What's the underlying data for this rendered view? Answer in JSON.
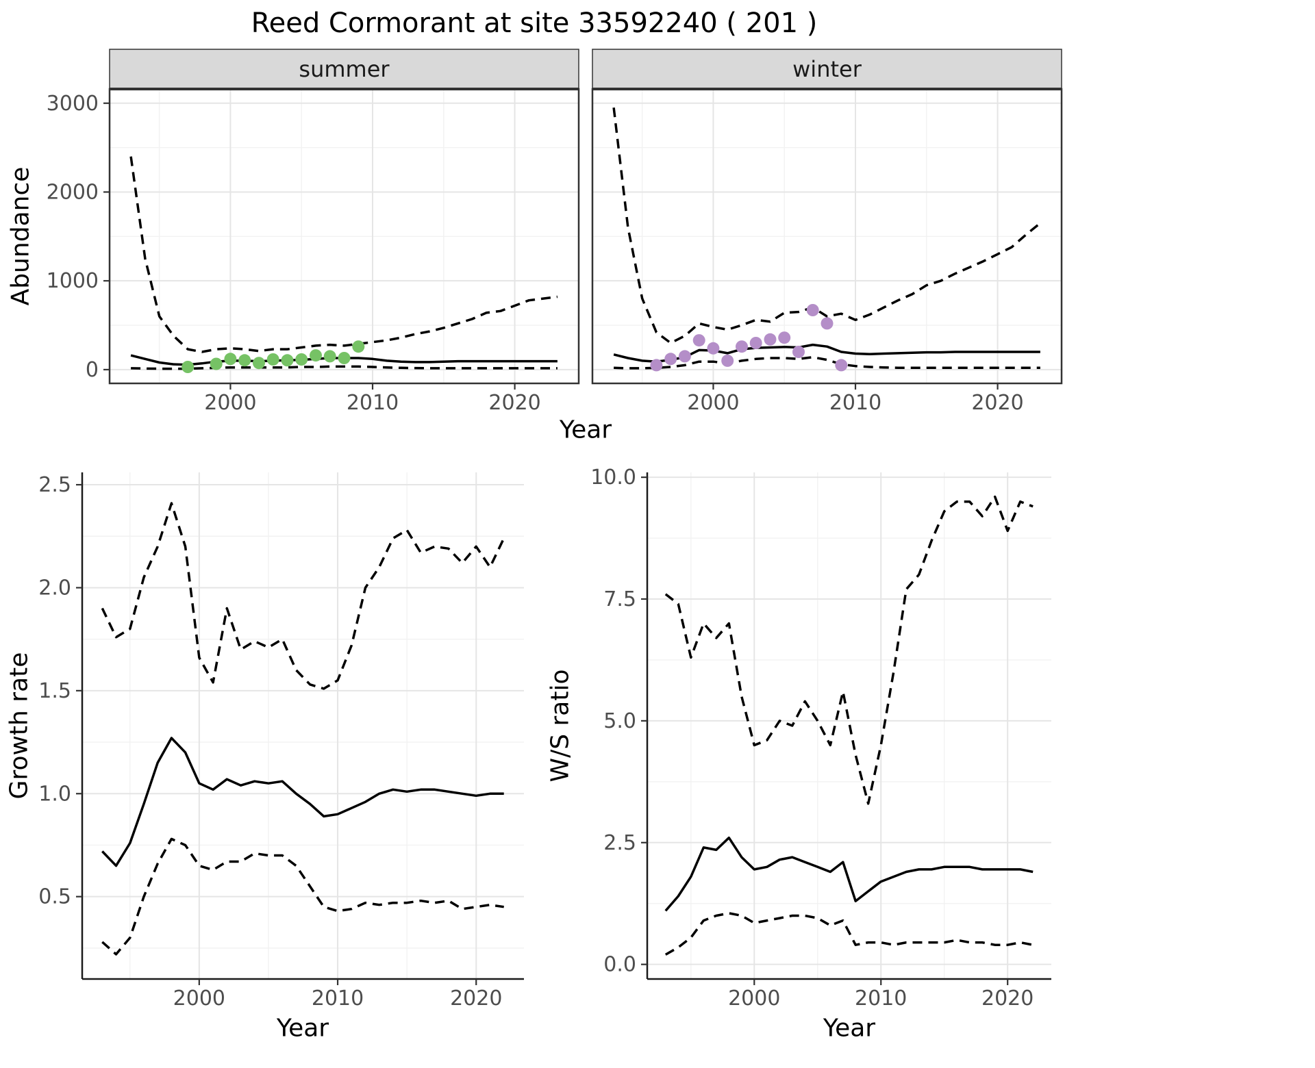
{
  "title": "Reed Cormorant at site 33592240 ( 201 )",
  "labels": {
    "abundance": "Abundance",
    "year": "Year",
    "growth_rate": "Growth rate",
    "ws_ratio": "W/S ratio",
    "facet_summer": "summer",
    "facet_winter": "winter"
  },
  "colors": {
    "summer_points": "#76C265",
    "winter_points": "#B48EC8",
    "strip_bg": "#D9D9D9",
    "grid_major": "#E5E5E5",
    "grid_minor": "#F2F2F2",
    "line": "#000000",
    "tick_label": "#4D4D4D",
    "border": "#333333"
  },
  "chart_data": [
    {
      "id": "abundance-summer",
      "type": "line",
      "facet_label": "summer",
      "xlabel": "Year",
      "ylabel": "Abundance",
      "xlim": [
        1991.5,
        2024.5
      ],
      "ylim": [
        -155,
        3160
      ],
      "xticks": [
        2000,
        2010,
        2020
      ],
      "xtick_labels": [
        "2000",
        "2010",
        "2020"
      ],
      "xticks_minor": [
        1995,
        2005,
        2015
      ],
      "yticks": [
        0,
        1000,
        2000,
        3000
      ],
      "ytick_labels": [
        "0",
        "1000",
        "2000",
        "3000"
      ],
      "yticks_minor": [
        500,
        1500,
        2500
      ],
      "x": [
        1993,
        1994,
        1995,
        1996,
        1997,
        1998,
        1999,
        2000,
        2001,
        2002,
        2003,
        2004,
        2005,
        2006,
        2007,
        2008,
        2009,
        2010,
        2011,
        2012,
        2013,
        2014,
        2015,
        2016,
        2017,
        2018,
        2019,
        2020,
        2021,
        2022,
        2023
      ],
      "series": [
        {
          "name": "upper-ci",
          "style": "dashed",
          "values": [
            2400,
            1250,
            600,
            380,
            230,
            200,
            230,
            240,
            230,
            210,
            230,
            230,
            250,
            270,
            280,
            270,
            290,
            310,
            330,
            360,
            400,
            430,
            470,
            520,
            570,
            640,
            660,
            720,
            780,
            800,
            820
          ]
        },
        {
          "name": "fit",
          "style": "solid",
          "values": [
            160,
            120,
            80,
            60,
            55,
            70,
            90,
            100,
            100,
            95,
            100,
            105,
            110,
            120,
            130,
            130,
            130,
            120,
            100,
            90,
            85,
            85,
            90,
            95,
            95,
            95,
            95,
            95,
            95,
            95,
            95
          ]
        },
        {
          "name": "lower-ci",
          "style": "dashed",
          "values": [
            15,
            12,
            10,
            10,
            10,
            15,
            20,
            25,
            25,
            25,
            25,
            25,
            30,
            30,
            35,
            35,
            35,
            30,
            25,
            20,
            18,
            15,
            15,
            15,
            15,
            15,
            15,
            15,
            15,
            15,
            15
          ]
        }
      ],
      "points": {
        "name": "summer-observations",
        "color": "#76C265",
        "x": [
          1997,
          1999,
          2000,
          2001,
          2002,
          2003,
          2004,
          2005,
          2006,
          2007,
          2008,
          2009
        ],
        "y": [
          30,
          65,
          120,
          105,
          75,
          115,
          105,
          115,
          160,
          150,
          130,
          260
        ]
      }
    },
    {
      "id": "abundance-winter",
      "type": "line",
      "facet_label": "winter",
      "xlabel": "Year",
      "ylabel": "Abundance",
      "xlim": [
        1991.5,
        2024.5
      ],
      "ylim": [
        -155,
        3160
      ],
      "xticks": [
        2000,
        2010,
        2020
      ],
      "xtick_labels": [
        "2000",
        "2010",
        "2020"
      ],
      "xticks_minor": [
        1995,
        2005,
        2015
      ],
      "yticks": [
        0,
        1000,
        2000,
        3000
      ],
      "ytick_labels": [
        "0",
        "1000",
        "2000",
        "3000"
      ],
      "yticks_minor": [
        500,
        1500,
        2500
      ],
      "x": [
        1993,
        1994,
        1995,
        1996,
        1997,
        1998,
        1999,
        2000,
        2001,
        2002,
        2003,
        2004,
        2005,
        2006,
        2007,
        2008,
        2009,
        2010,
        2011,
        2012,
        2013,
        2014,
        2015,
        2016,
        2017,
        2018,
        2019,
        2020,
        2021,
        2022,
        2023
      ],
      "series": [
        {
          "name": "upper-ci",
          "style": "dashed",
          "values": [
            2950,
            1600,
            800,
            420,
            300,
            380,
            520,
            480,
            450,
            500,
            560,
            540,
            640,
            650,
            700,
            600,
            630,
            560,
            620,
            700,
            780,
            850,
            950,
            1000,
            1080,
            1150,
            1220,
            1300,
            1380,
            1520,
            1650
          ]
        },
        {
          "name": "fit",
          "style": "solid",
          "values": [
            170,
            130,
            100,
            90,
            110,
            140,
            220,
            215,
            185,
            230,
            245,
            250,
            255,
            250,
            280,
            260,
            200,
            180,
            175,
            180,
            185,
            190,
            195,
            195,
            200,
            200,
            200,
            200,
            200,
            200,
            200
          ]
        },
        {
          "name": "lower-ci",
          "style": "dashed",
          "values": [
            20,
            15,
            15,
            20,
            30,
            50,
            90,
            90,
            70,
            100,
            120,
            130,
            130,
            120,
            140,
            110,
            60,
            40,
            30,
            25,
            20,
            20,
            20,
            20,
            20,
            20,
            20,
            20,
            20,
            20,
            20
          ]
        }
      ],
      "points": {
        "name": "winter-observations",
        "color": "#B48EC8",
        "x": [
          1996,
          1997,
          1998,
          1999,
          2000,
          2001,
          2002,
          2003,
          2004,
          2005,
          2006,
          2007,
          2008,
          2009
        ],
        "y": [
          50,
          120,
          150,
          330,
          240,
          100,
          260,
          300,
          340,
          360,
          200,
          670,
          520,
          50
        ]
      }
    },
    {
      "id": "growth-rate",
      "type": "line",
      "xlabel": "Year",
      "ylabel": "Growth rate",
      "xlim": [
        1991.55,
        2023.45
      ],
      "ylim": [
        0.1,
        2.56
      ],
      "xticks": [
        2000,
        2010,
        2020
      ],
      "xtick_labels": [
        "2000",
        "2010",
        "2020"
      ],
      "xticks_minor": [
        1995,
        2005,
        2015
      ],
      "yticks": [
        0.5,
        1.0,
        1.5,
        2.0,
        2.5
      ],
      "ytick_labels": [
        "0.5",
        "1.0",
        "1.5",
        "2.0",
        "2.5"
      ],
      "yticks_minor": [
        0.25,
        0.75,
        1.25,
        1.75,
        2.25
      ],
      "x": [
        1993,
        1994,
        1995,
        1996,
        1997,
        1998,
        1999,
        2000,
        2001,
        2002,
        2003,
        2004,
        2005,
        2006,
        2007,
        2008,
        2009,
        2010,
        2011,
        2012,
        2013,
        2014,
        2015,
        2016,
        2017,
        2018,
        2019,
        2020,
        2021,
        2022
      ],
      "series": [
        {
          "name": "upper-ci",
          "style": "dashed",
          "values": [
            1.9,
            1.76,
            1.8,
            2.05,
            2.2,
            2.41,
            2.2,
            1.66,
            1.54,
            1.9,
            1.7,
            1.74,
            1.71,
            1.75,
            1.6,
            1.53,
            1.51,
            1.55,
            1.72,
            2.0,
            2.1,
            2.24,
            2.28,
            2.17,
            2.2,
            2.19,
            2.12,
            2.2,
            2.1,
            2.24
          ]
        },
        {
          "name": "fit",
          "style": "solid",
          "values": [
            0.72,
            0.65,
            0.76,
            0.95,
            1.15,
            1.27,
            1.2,
            1.05,
            1.02,
            1.07,
            1.04,
            1.06,
            1.05,
            1.06,
            1.0,
            0.95,
            0.89,
            0.9,
            0.93,
            0.96,
            1.0,
            1.02,
            1.01,
            1.02,
            1.02,
            1.01,
            1.0,
            0.99,
            1.0,
            1.0
          ]
        },
        {
          "name": "lower-ci",
          "style": "dashed",
          "values": [
            0.28,
            0.22,
            0.3,
            0.5,
            0.66,
            0.78,
            0.75,
            0.65,
            0.63,
            0.67,
            0.67,
            0.71,
            0.7,
            0.7,
            0.65,
            0.55,
            0.45,
            0.43,
            0.44,
            0.47,
            0.46,
            0.47,
            0.47,
            0.48,
            0.47,
            0.48,
            0.44,
            0.45,
            0.46,
            0.45
          ]
        }
      ]
    },
    {
      "id": "ws-ratio",
      "type": "line",
      "xlabel": "Year",
      "ylabel": "W/S ratio",
      "xlim": [
        1991.55,
        2023.45
      ],
      "ylim": [
        -0.3,
        10.1
      ],
      "xticks": [
        2000,
        2010,
        2020
      ],
      "xtick_labels": [
        "2000",
        "2010",
        "2020"
      ],
      "xticks_minor": [
        1995,
        2005,
        2015
      ],
      "yticks": [
        0.0,
        2.5,
        5.0,
        7.5,
        10.0
      ],
      "ytick_labels": [
        "0.0",
        "2.5",
        "5.0",
        "7.5",
        "10.0"
      ],
      "yticks_minor": [
        1.25,
        3.75,
        6.25,
        8.75
      ],
      "x": [
        1993,
        1994,
        1995,
        1996,
        1997,
        1998,
        1999,
        2000,
        2001,
        2002,
        2003,
        2004,
        2005,
        2006,
        2007,
        2008,
        2009,
        2010,
        2011,
        2012,
        2013,
        2014,
        2015,
        2016,
        2017,
        2018,
        2019,
        2020,
        2021,
        2022
      ],
      "series": [
        {
          "name": "upper-ci",
          "style": "dashed",
          "values": [
            7.6,
            7.4,
            6.3,
            7.0,
            6.7,
            7.0,
            5.5,
            4.5,
            4.6,
            5.0,
            4.9,
            5.4,
            5.0,
            4.5,
            5.6,
            4.3,
            3.3,
            4.5,
            6.0,
            7.7,
            8.0,
            8.7,
            9.3,
            9.5,
            9.5,
            9.2,
            9.6,
            8.9,
            9.5,
            9.4
          ]
        },
        {
          "name": "fit",
          "style": "solid",
          "values": [
            1.1,
            1.4,
            1.8,
            2.4,
            2.35,
            2.6,
            2.2,
            1.95,
            2.0,
            2.15,
            2.2,
            2.1,
            2.0,
            1.9,
            2.1,
            1.3,
            1.5,
            1.7,
            1.8,
            1.9,
            1.95,
            1.95,
            2.0,
            2.0,
            2.0,
            1.95,
            1.95,
            1.95,
            1.95,
            1.9
          ]
        },
        {
          "name": "lower-ci",
          "style": "dashed",
          "values": [
            0.2,
            0.35,
            0.55,
            0.9,
            1.0,
            1.05,
            1.0,
            0.85,
            0.9,
            0.95,
            1.0,
            1.0,
            0.95,
            0.8,
            0.9,
            0.4,
            0.45,
            0.45,
            0.4,
            0.45,
            0.45,
            0.45,
            0.45,
            0.5,
            0.45,
            0.45,
            0.4,
            0.4,
            0.45,
            0.4
          ]
        }
      ]
    }
  ]
}
